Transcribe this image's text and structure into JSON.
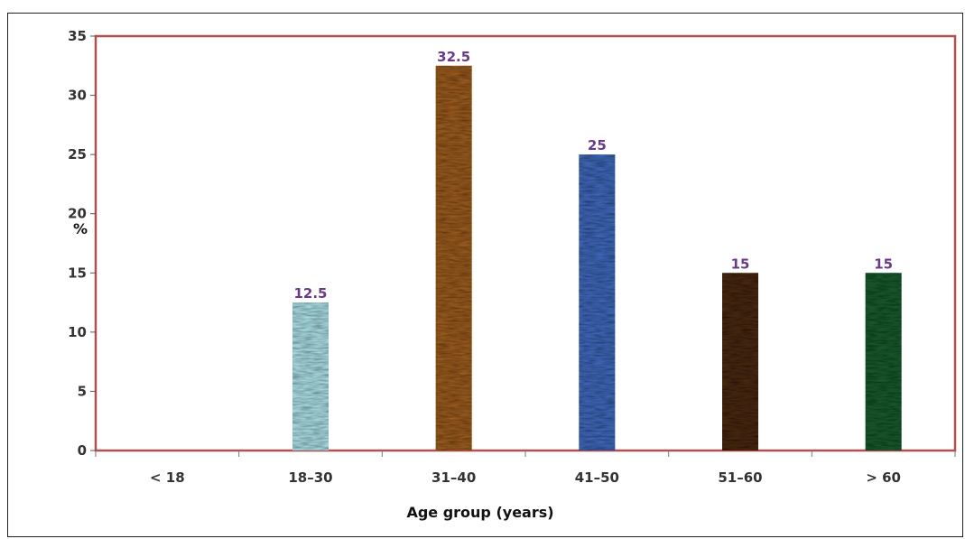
{
  "chart_data": {
    "type": "bar",
    "categories": [
      "< 18",
      "18–30",
      "31–40",
      "41–50",
      "51–60",
      "> 60"
    ],
    "values": [
      0,
      12.5,
      32.5,
      25,
      15,
      15
    ],
    "data_labels": [
      "",
      "12.5",
      "32.5",
      "25",
      "15",
      "15"
    ],
    "xlabel": "Age group (years)",
    "ylabel": "%",
    "ylim": [
      0,
      35
    ],
    "yticks": [
      0,
      5,
      10,
      15,
      20,
      25,
      30,
      35
    ],
    "ytick_labels": [
      "0",
      "5",
      "10",
      "15",
      "20",
      "25",
      "30",
      "35"
    ],
    "grid": false,
    "legend": "none",
    "bar_colors": [
      "#ffffff",
      "#a9dde3",
      "#9a5b22",
      "#3f68b8",
      "#4a2a14",
      "#1f5a2e"
    ],
    "label_color": "#6a3a8a",
    "axis_border_color": "#b05050"
  }
}
